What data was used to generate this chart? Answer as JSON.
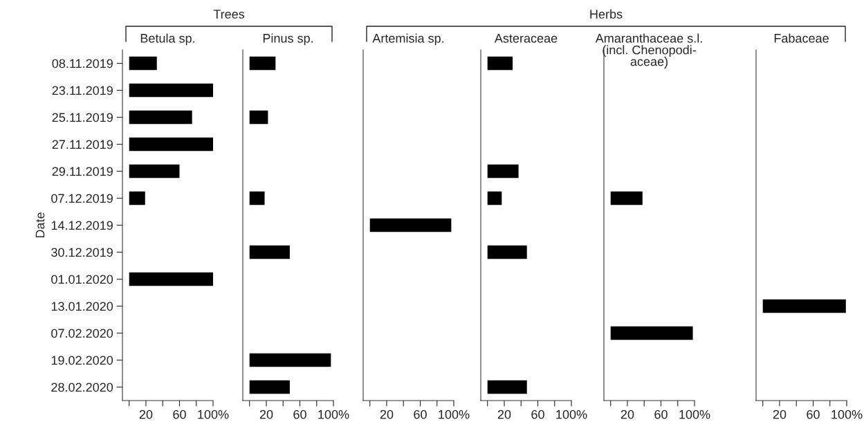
{
  "chart_data": [
    {
      "type": "bar",
      "orientation": "horizontal",
      "title": "Betula sp.",
      "ylabel": "Date",
      "annotations": [
        "Trees"
      ],
      "categories": [
        "08.11.2019",
        "23.11.2019",
        "25.11.2019",
        "27.11.2019",
        "29.11.2019",
        "07.12.2019",
        "14.12.2019",
        "30.12.2019",
        "01.01.2020",
        "13.01.2020",
        "07.02.2020",
        "19.02.2020",
        "28.02.2020"
      ],
      "values": [
        33,
        100,
        75,
        100,
        60,
        19,
        null,
        null,
        100,
        null,
        null,
        null,
        null
      ],
      "color": "#000000",
      "xlim": [
        -8,
        100
      ],
      "xticks": [
        {
          "value": 0,
          "label": null
        },
        20,
        {
          "value": 40,
          "label": null
        },
        60,
        {
          "value": 80,
          "label": null
        },
        {
          "value": 100,
          "label": "100%"
        }
      ]
    },
    {
      "type": "bar",
      "orientation": "horizontal",
      "title": "Pinus sp.",
      "tick_labels": "x",
      "categories": [
        "08.11.2019",
        "23.11.2019",
        "25.11.2019",
        "27.11.2019",
        "29.11.2019",
        "07.12.2019",
        "14.12.2019",
        "30.12.2019",
        "01.01.2020",
        "13.01.2020",
        "07.02.2020",
        "19.02.2020",
        "28.02.2020"
      ],
      "values": [
        31,
        null,
        22,
        null,
        null,
        18,
        null,
        48,
        null,
        null,
        null,
        97,
        48
      ],
      "color": "#000000",
      "xlim": [
        -8,
        100
      ],
      "xticks": [
        {
          "value": 0,
          "label": null
        },
        20,
        {
          "value": 40,
          "label": null
        },
        60,
        {
          "value": 80,
          "label": null
        },
        {
          "value": 100,
          "label": "100%"
        }
      ]
    },
    {
      "type": "bar",
      "orientation": "horizontal",
      "title": "Artemisia sp.",
      "annotations": [
        "Herbs"
      ],
      "tick_labels": "x",
      "categories": [
        "08.11.2019",
        "23.11.2019",
        "25.11.2019",
        "27.11.2019",
        "29.11.2019",
        "07.12.2019",
        "14.12.2019",
        "30.12.2019",
        "01.01.2020",
        "13.01.2020",
        "07.02.2020",
        "19.02.2020",
        "28.02.2020"
      ],
      "values": [
        null,
        null,
        null,
        null,
        null,
        null,
        97,
        null,
        null,
        null,
        null,
        null,
        null
      ],
      "color": "#000000",
      "xlim": [
        -8,
        100
      ],
      "xticks": [
        {
          "value": 0,
          "label": null
        },
        20,
        {
          "value": 40,
          "label": null
        },
        60,
        {
          "value": 80,
          "label": null
        },
        {
          "value": 100,
          "label": "100%"
        }
      ]
    },
    {
      "type": "bar",
      "orientation": "horizontal",
      "title": "Asteraceae",
      "tick_labels": "x",
      "categories": [
        "08.11.2019",
        "23.11.2019",
        "25.11.2019",
        "27.11.2019",
        "29.11.2019",
        "07.12.2019",
        "14.12.2019",
        "30.12.2019",
        "01.01.2020",
        "13.01.2020",
        "07.02.2020",
        "19.02.2020",
        "28.02.2020"
      ],
      "values": [
        30,
        null,
        null,
        null,
        37,
        17,
        null,
        47,
        null,
        null,
        null,
        null,
        47
      ],
      "color": "#000000",
      "xlim": [
        -8,
        100
      ],
      "xticks": [
        {
          "value": 0,
          "label": null
        },
        20,
        {
          "value": 40,
          "label": null
        },
        60,
        {
          "value": 80,
          "label": null
        },
        {
          "value": 100,
          "label": "100%"
        }
      ]
    },
    {
      "type": "bar",
      "orientation": "horizontal",
      "title": "Amaranthaceae s.l.\n(incl. Chenopodi-\naceae)",
      "tick_labels": "x",
      "categories": [
        "08.11.2019",
        "23.11.2019",
        "25.11.2019",
        "27.11.2019",
        "29.11.2019",
        "07.12.2019",
        "14.12.2019",
        "30.12.2019",
        "01.01.2020",
        "13.01.2020",
        "07.02.2020",
        "19.02.2020",
        "28.02.2020"
      ],
      "values": [
        null,
        null,
        null,
        null,
        null,
        38,
        null,
        null,
        null,
        null,
        98,
        null,
        null
      ],
      "color": "#000000",
      "xlim": [
        -8,
        100
      ],
      "xticks": [
        {
          "value": 0,
          "label": null
        },
        20,
        {
          "value": 40,
          "label": null
        },
        60,
        {
          "value": 80,
          "label": null
        },
        {
          "value": 100,
          "label": "100%"
        }
      ]
    },
    {
      "type": "bar",
      "orientation": "horizontal",
      "title": "Fabaceae",
      "tick_labels": "x",
      "categories": [
        "08.11.2019",
        "23.11.2019",
        "25.11.2019",
        "27.11.2019",
        "29.11.2019",
        "07.12.2019",
        "14.12.2019",
        "30.12.2019",
        "01.01.2020",
        "13.01.2020",
        "07.02.2020",
        "19.02.2020",
        "28.02.2020"
      ],
      "values": [
        null,
        null,
        null,
        null,
        null,
        null,
        null,
        null,
        null,
        99,
        null,
        null,
        null
      ],
      "color": "#000000",
      "xlim": [
        -8,
        100
      ],
      "xticks": [
        {
          "value": 0,
          "label": null
        },
        20,
        {
          "value": 40,
          "label": null
        },
        60,
        {
          "value": 80,
          "label": null
        },
        {
          "value": 100,
          "label": "100%"
        }
      ]
    }
  ]
}
